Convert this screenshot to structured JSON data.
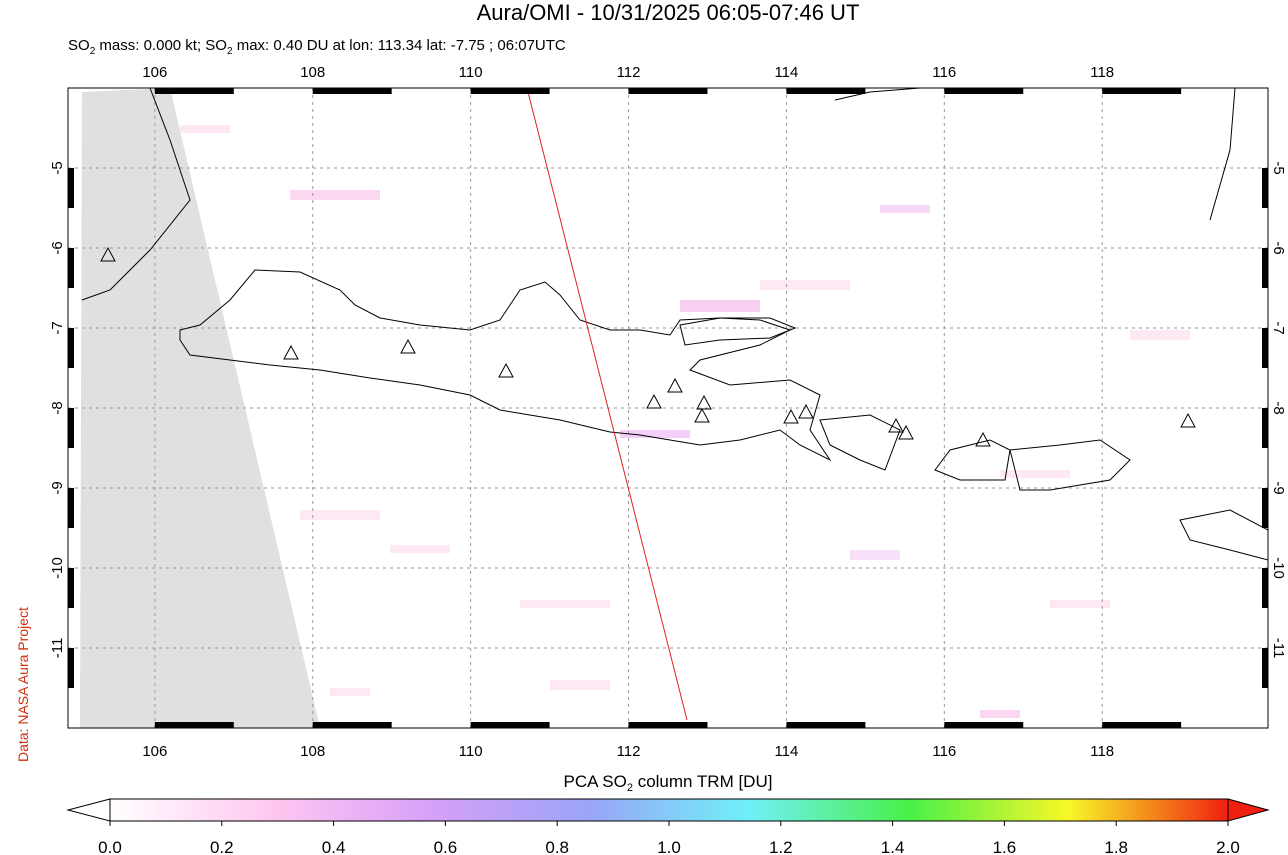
{
  "title": "Aura/OMI - 10/31/2025 06:05-07:46 UT",
  "subtitle": [
    "SO",
    "2",
    " mass: 0.000 kt; SO",
    "2",
    " max: 0.40 DU at lon: 113.34 lat: -7.75 ; 06:07UTC"
  ],
  "credit": "Data: NASA Aura Project",
  "map": {
    "xlim": [
      104.9,
      120.1
    ],
    "ylim": [
      -12,
      -4
    ],
    "xticks": [
      106,
      108,
      110,
      112,
      114,
      116,
      118
    ],
    "yticks": [
      -5,
      -6,
      -7,
      -8,
      -9,
      -10,
      -11
    ],
    "grid": true
  },
  "colorbar": {
    "label": [
      "PCA SO",
      "2",
      " column TRM [DU]"
    ],
    "range": [
      0,
      2
    ],
    "colors": [
      "#ffffff",
      "#ffc8f0",
      "#d8a0f8",
      "#9aa4f8",
      "#70f0f8",
      "#48f048",
      "#f8f828",
      "#f02010"
    ],
    "ticks": [
      {
        "value": 0,
        "label": "0.0"
      },
      {
        "value": 0.2,
        "label": "0.2"
      },
      {
        "value": 0.4,
        "label": "0.4"
      },
      {
        "value": 0.6,
        "label": "0.6"
      },
      {
        "value": 0.8,
        "label": "0.8"
      },
      {
        "value": 1,
        "label": "1.0"
      },
      {
        "value": 1.2,
        "label": "1.2"
      },
      {
        "value": 1.4,
        "label": "1.4"
      },
      {
        "value": 1.6,
        "label": "1.6"
      },
      {
        "value": 1.8,
        "label": "1.8"
      },
      {
        "value": 2,
        "label": "2.0"
      }
    ]
  }
}
